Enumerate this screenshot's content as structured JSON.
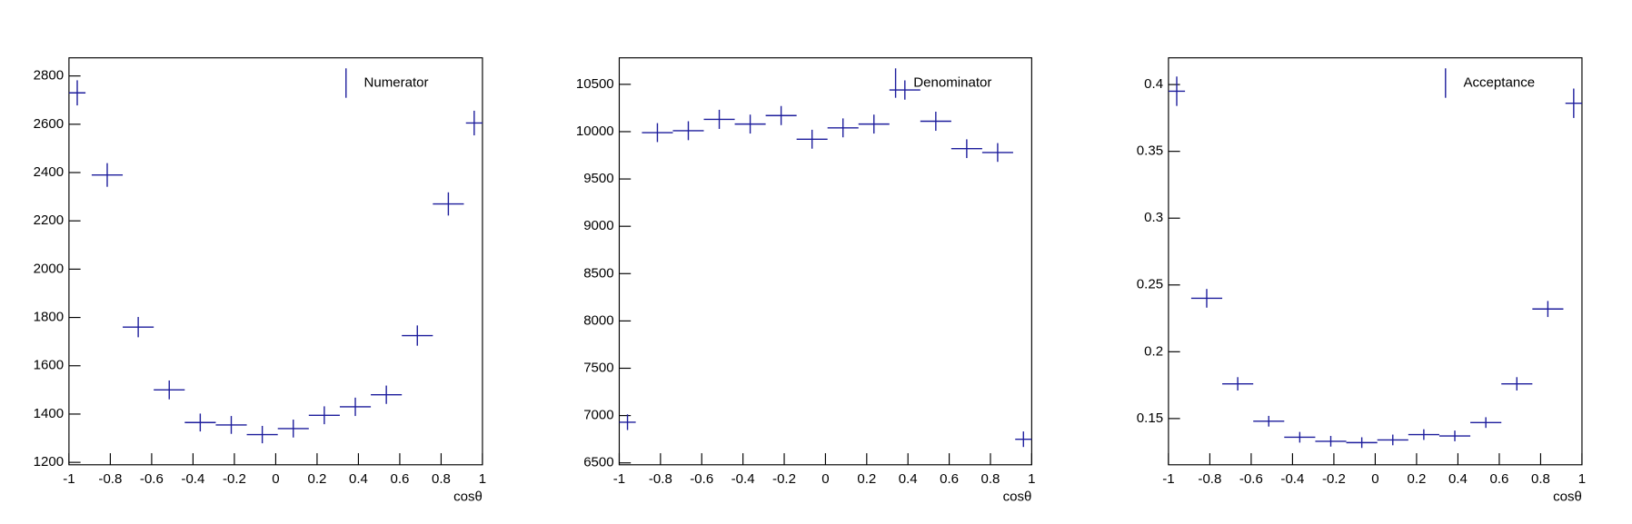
{
  "chart_data": [
    {
      "type": "errorbar",
      "x_label": "cosθ",
      "x": [
        -0.96,
        -0.815,
        -0.665,
        -0.515,
        -0.365,
        -0.215,
        -0.065,
        0.085,
        0.235,
        0.385,
        0.535,
        0.685,
        0.835,
        0.96
      ],
      "xerr": [
        0.04,
        0.075,
        0.075,
        0.075,
        0.075,
        0.075,
        0.075,
        0.075,
        0.075,
        0.075,
        0.075,
        0.075,
        0.075,
        0.04
      ],
      "series": [
        {
          "name": "Numerator",
          "color": "#1c1c9c",
          "values": [
            2730,
            2390,
            1760,
            1500,
            1365,
            1355,
            1315,
            1340,
            1395,
            1430,
            1480,
            1725,
            2270,
            2605
          ],
          "errors": [
            52,
            49,
            42,
            39,
            37,
            37,
            36,
            37,
            37,
            38,
            38,
            42,
            48,
            51
          ]
        }
      ],
      "xlim": [
        -1,
        1
      ],
      "xticks": [
        -1,
        -0.8,
        -0.6,
        -0.4,
        -0.2,
        0,
        0.2,
        0.4,
        0.6,
        0.8,
        1
      ],
      "ylim": [
        1190,
        2875
      ],
      "yticks": [
        1200,
        1400,
        1600,
        1800,
        2000,
        2200,
        2400,
        2600,
        2800
      ]
    },
    {
      "type": "errorbar",
      "x_label": "cosθ",
      "x": [
        -0.96,
        -0.815,
        -0.665,
        -0.515,
        -0.365,
        -0.215,
        -0.065,
        0.085,
        0.235,
        0.385,
        0.535,
        0.685,
        0.835,
        0.96
      ],
      "xerr": [
        0.04,
        0.075,
        0.075,
        0.075,
        0.075,
        0.075,
        0.075,
        0.075,
        0.075,
        0.075,
        0.075,
        0.075,
        0.075,
        0.04
      ],
      "series": [
        {
          "name": "Denominator",
          "color": "#1c1c9c",
          "values": [
            6930,
            9990,
            10010,
            10130,
            10080,
            10170,
            9920,
            10040,
            10080,
            10440,
            10110,
            9820,
            9780,
            6750
          ],
          "errors": [
            83,
            100,
            100,
            101,
            100,
            101,
            100,
            100,
            100,
            102,
            101,
            99,
            99,
            82
          ]
        }
      ],
      "xlim": [
        -1,
        1
      ],
      "xticks": [
        -1,
        -0.8,
        -0.6,
        -0.4,
        -0.2,
        0,
        0.2,
        0.4,
        0.6,
        0.8,
        1
      ],
      "ylim": [
        6480,
        10780
      ],
      "yticks": [
        6500,
        7000,
        7500,
        8000,
        8500,
        9000,
        9500,
        10000,
        10500
      ]
    },
    {
      "type": "errorbar",
      "x_label": "cosθ",
      "x": [
        -0.96,
        -0.815,
        -0.665,
        -0.515,
        -0.365,
        -0.215,
        -0.065,
        0.085,
        0.235,
        0.385,
        0.535,
        0.685,
        0.835,
        0.96
      ],
      "xerr": [
        0.04,
        0.075,
        0.075,
        0.075,
        0.075,
        0.075,
        0.075,
        0.075,
        0.075,
        0.075,
        0.075,
        0.075,
        0.075,
        0.04
      ],
      "series": [
        {
          "name": "Acceptance",
          "color": "#1c1c9c",
          "values": [
            0.395,
            0.24,
            0.176,
            0.148,
            0.136,
            0.133,
            0.132,
            0.134,
            0.138,
            0.137,
            0.147,
            0.176,
            0.232,
            0.386
          ],
          "errors": [
            0.011,
            0.007,
            0.005,
            0.004,
            0.004,
            0.004,
            0.004,
            0.004,
            0.004,
            0.004,
            0.004,
            0.005,
            0.006,
            0.011
          ]
        }
      ],
      "xlim": [
        -1,
        1
      ],
      "xticks": [
        -1,
        -0.8,
        -0.6,
        -0.4,
        -0.2,
        0,
        0.2,
        0.4,
        0.6,
        0.8,
        1
      ],
      "ylim": [
        0.1154,
        0.42
      ],
      "yticks": [
        0.15,
        0.2,
        0.25,
        0.3,
        0.35,
        0.4
      ]
    }
  ]
}
